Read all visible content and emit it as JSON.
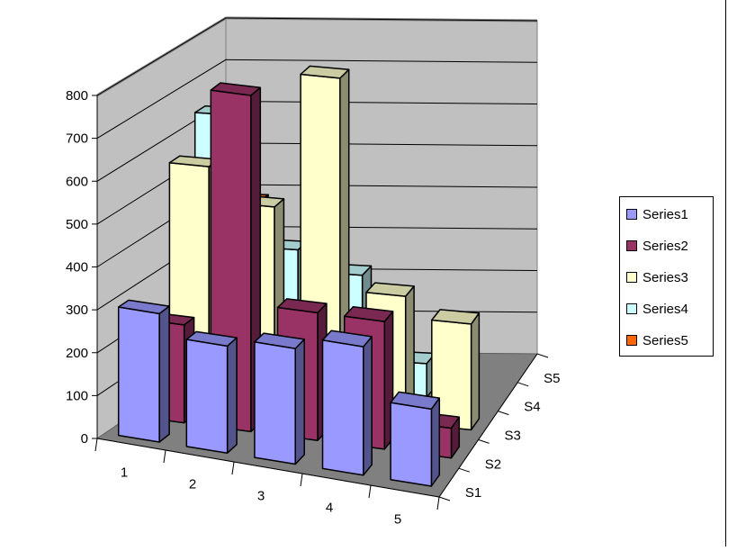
{
  "chart_data": {
    "type": "bar",
    "variant": "3d-column",
    "categories": [
      "1",
      "2",
      "3",
      "4",
      "5"
    ],
    "depth_labels": [
      "S1",
      "S2",
      "S3",
      "S4",
      "S5"
    ],
    "series": [
      {
        "name": "Series1",
        "color": "#9999FF",
        "values": [
          300,
          250,
          270,
          300,
          180
        ]
      },
      {
        "name": "Series2",
        "color": "#993366",
        "values": [
          230,
          790,
          300,
          300,
          70
        ]
      },
      {
        "name": "Series3",
        "color": "#FFFFCC",
        "values": [
          560,
          480,
          800,
          300,
          250
        ]
      },
      {
        "name": "Series4",
        "color": "#CCFFFF",
        "values": [
          640,
          330,
          280,
          80,
          0
        ]
      },
      {
        "name": "Series5",
        "color": "#FF6600",
        "values": [
          390,
          180,
          60,
          0,
          0
        ]
      }
    ],
    "y_ticks": [
      "0",
      "100",
      "200",
      "300",
      "400",
      "500",
      "600",
      "700",
      "800"
    ],
    "ylim": [
      0,
      800
    ],
    "grid": true,
    "legend_position": "right",
    "title": "",
    "xlabel": "",
    "ylabel": ""
  }
}
